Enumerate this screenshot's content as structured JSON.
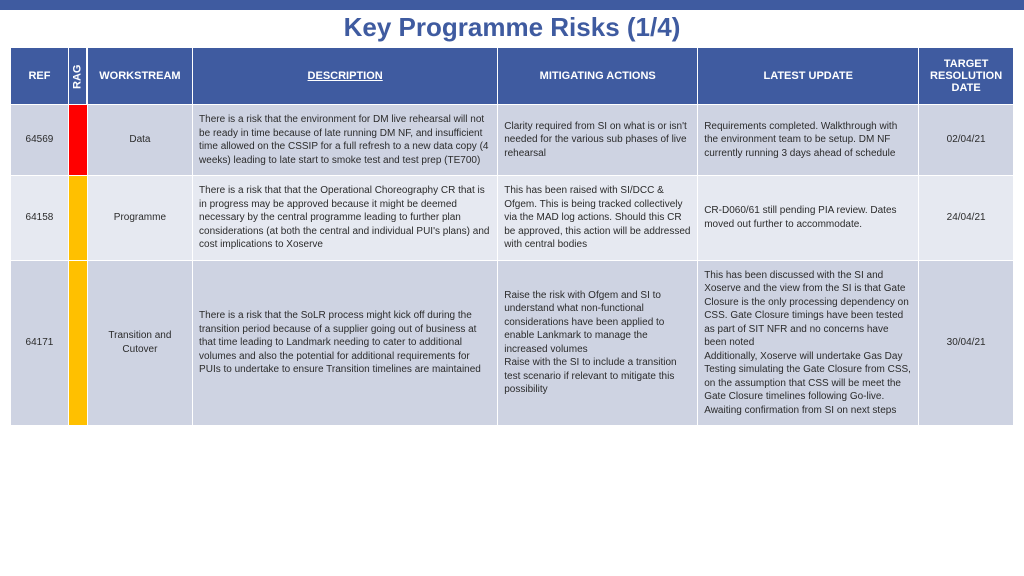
{
  "colors": {
    "header_bg": "#3f5ba0",
    "title_color": "#3f5ba0",
    "topbar_bg": "#3f5ba0",
    "row_alt1": "#ced3e2",
    "row_alt2": "#e6e9f1",
    "rag_red": "#ff0000",
    "rag_amber": "#ffc000",
    "text": "#2b2b2b"
  },
  "title": {
    "text": "Key Programme Risks (1/4)",
    "fontsize": 26
  },
  "columns": {
    "ref": "REF",
    "rag": "RAG",
    "workstream": "WORKSTREAM",
    "description": "DESCRIPTION",
    "mitigating": "MITIGATING ACTIONS",
    "update": "LATEST UPDATE",
    "date": "TARGET RESOLUTION DATE"
  },
  "rows": [
    {
      "ref": "64569",
      "rag_color_key": "rag_red",
      "workstream": "Data",
      "description": "There is a risk that  the environment for DM live rehearsal will not be ready in time  because of late running DM NF, and insufficient time allowed on the CSSIP for a full refresh to a new data copy (4 weeks) leading to late start to smoke test and test prep (TE700)",
      "mitigating": "Clarity required from SI on what is or isn't needed for the various sub phases of live rehearsal",
      "update": "Requirements completed. Walkthrough with the environment team to be setup. DM NF currently running 3 days ahead of schedule",
      "date": "02/04/21",
      "bg_key": "row_alt1"
    },
    {
      "ref": "64158",
      "rag_color_key": "rag_amber",
      "workstream": "Programme",
      "description": "There is a risk that that the Operational Choreography CR that is in progress may be approved because it might be deemed necessary by the central programme leading to further plan considerations (at both the central and individual PUI's plans) and cost implications to Xoserve",
      "mitigating": "This has been raised with SI/DCC & Ofgem. This is being tracked collectively via the MAD log actions. Should this CR be approved, this action will be addressed with central bodies",
      "update": "CR-D060/61 still pending PIA review. Dates moved out further to accommodate.",
      "date": "24/04/21",
      "bg_key": "row_alt2"
    },
    {
      "ref": "64171",
      "rag_color_key": "rag_amber",
      "workstream": "Transition and Cutover",
      "description": "There is a risk that the SoLR process might kick off during the transition period because of a supplier going out of business at that time leading to Landmark needing to cater to additional volumes and also the potential for additional requirements for PUIs to undertake to ensure Transition timelines are maintained",
      "mitigating": "Raise the risk with Ofgem and SI to understand what non-functional considerations have been applied to enable Lankmark to manage the increased volumes\nRaise with the SI to include a transition test scenario if relevant to mitigate this possibility",
      "update": "This has been discussed with the SI and Xoserve and the view from the SI is that Gate Closure is the only processing dependency on CSS. Gate Closure timings have been tested as part of SIT NFR and no concerns have been noted\nAdditionally, Xoserve will undertake Gas Day Testing simulating the Gate Closure from CSS, on the assumption that CSS will be meet the Gate Closure timelines following Go-live. Awaiting confirmation from SI on next steps",
      "date": "30/04/21",
      "bg_key": "row_alt1"
    }
  ]
}
